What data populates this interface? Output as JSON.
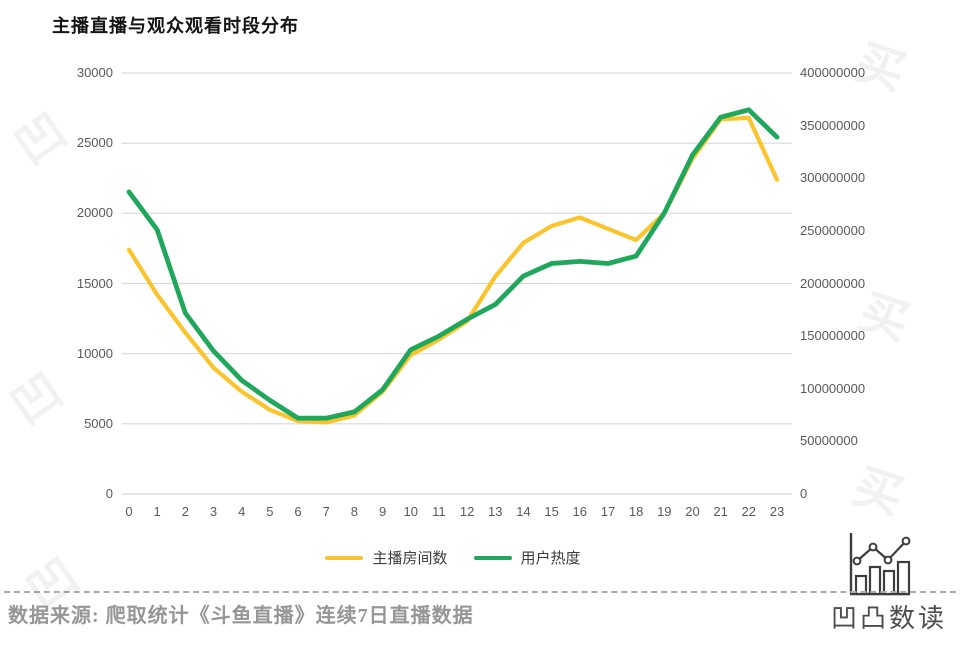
{
  "title": "主播直播与观众观看时段分布",
  "chart_data": {
    "type": "line",
    "x": [
      0,
      1,
      2,
      3,
      4,
      5,
      6,
      7,
      8,
      9,
      10,
      11,
      12,
      13,
      14,
      15,
      16,
      17,
      18,
      19,
      20,
      21,
      22,
      23
    ],
    "xlabel": "",
    "series": [
      {
        "name": "主播房间数",
        "axis": "left",
        "color": "#FBC42D",
        "values": [
          17400,
          14200,
          11500,
          9000,
          7300,
          6000,
          5200,
          5100,
          5600,
          7300,
          9900,
          11000,
          12300,
          15500,
          17900,
          19100,
          19700,
          18900,
          18100,
          20000,
          23900,
          26700,
          26800,
          22400
        ]
      },
      {
        "name": "用户热度",
        "axis": "right",
        "color": "#1FA75C",
        "values": [
          287000000,
          251000000,
          172000000,
          136000000,
          108000000,
          89000000,
          72000000,
          72000000,
          78000000,
          99000000,
          137000000,
          150000000,
          166000000,
          180000000,
          207000000,
          219000000,
          221000000,
          219000000,
          226000000,
          267000000,
          322000000,
          358000000,
          365000000,
          339000000
        ]
      }
    ],
    "y_left": {
      "min": 0,
      "max": 30000,
      "ticks": [
        30000,
        25000,
        20000,
        15000,
        10000,
        5000,
        0
      ]
    },
    "y_right": {
      "min": 0,
      "max": 400000000,
      "ticks": [
        400000000,
        350000000,
        300000000,
        250000000,
        200000000,
        150000000,
        100000000,
        50000000,
        0
      ]
    },
    "grid": true,
    "grid_color": "#D9D9D9",
    "legend_position": "bottom"
  },
  "legend": [
    {
      "label": "主播房间数",
      "color": "#FBC42D"
    },
    {
      "label": "用户热度",
      "color": "#1FA75C"
    }
  ],
  "footer": {
    "source_text": "数据来源: 爬取统计《斗鱼直播》连续7日直播数据"
  },
  "logo": {
    "text": "凹凸数读"
  },
  "watermarks": [
    "凹",
    "凹",
    "凹",
    "买",
    "买",
    "买"
  ]
}
